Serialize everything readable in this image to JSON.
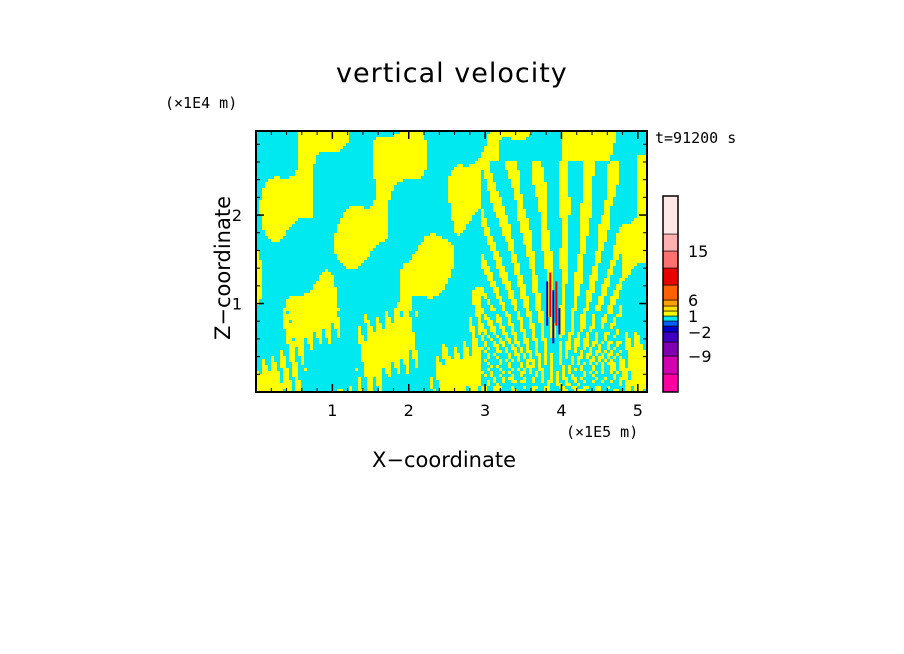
{
  "chart_data": {
    "type": "heatmap",
    "title": "vertical velocity",
    "xlabel": "X−coordinate",
    "ylabel": "Z−coordinate",
    "x_unit": "(×1E5 m)",
    "y_unit": "(×1E4 m)",
    "time_label": "t=91200 s",
    "x_ticks": [
      1,
      2,
      3,
      4,
      5
    ],
    "y_ticks": [
      1,
      2
    ],
    "xlim": [
      0,
      5.12
    ],
    "ylim": [
      0,
      2.95
    ],
    "colorbar": {
      "tick_labels": [
        "15",
        "6",
        "1",
        "−2",
        "−9"
      ],
      "tick_values": [
        15,
        6,
        1,
        -2,
        -9
      ],
      "colors": [
        "#ff00a0",
        "#d000b0",
        "#8000b0",
        "#4000c0",
        "#0000c8",
        "#0060ff",
        "#00e8f0",
        "#ffff00",
        "#ffe000",
        "#ffa000",
        "#ff6000",
        "#e80000",
        "#ff7070",
        "#ffb0b0",
        "#ffe8e8"
      ]
    },
    "field_colors": {
      "positive": "#ffff00",
      "negative": "#00e8f0",
      "strong_positive": "#e80000",
      "strong_negative": "#0000c8"
    }
  }
}
